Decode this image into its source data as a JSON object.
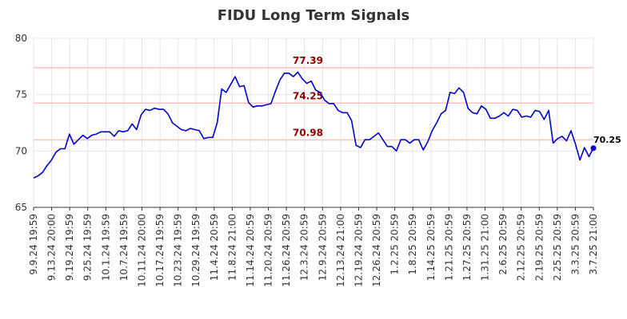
{
  "chart_data": {
    "type": "line",
    "title": "FIDU Long Term Signals",
    "xlabel": "",
    "ylabel": "",
    "ylim": [
      65,
      80
    ],
    "y_ticks": [
      65,
      70,
      75,
      80
    ],
    "grid": true,
    "x_tick_labels": [
      "9.9.24 19:59",
      "9.13.24 20:00",
      "9.19.24 19:59",
      "9.25.24 19:59",
      "10.1.24 19:59",
      "10.7.24 19:59",
      "10.11.24 20:00",
      "10.17.24 19:59",
      "10.23.24 19:59",
      "10.29.24 19:59",
      "11.4.24 20:59",
      "11.8.24 21:00",
      "11.14.24 20:59",
      "11.20.24 20:59",
      "11.26.24 20:59",
      "12.3.24 20:59",
      "12.9.24 20:59",
      "12.13.24 21:00",
      "12.19.24 20:59",
      "12.26.24 20:59",
      "1.2.25 20:59",
      "1.8.25 20:59",
      "1.14.25 20:59",
      "1.21.25 20:59",
      "1.27.25 20:59",
      "1.31.25 21:00",
      "2.6.25 20:59",
      "2.12.25 20:59",
      "2.19.25 20:59",
      "2.25.25 20:59",
      "3.3.25 20:59",
      "3.7.25 21:00"
    ],
    "series": [
      {
        "color": "#0000cc",
        "values": [
          67.6,
          67.8,
          68.1,
          68.7,
          69.2,
          69.9,
          70.2,
          70.2,
          71.5,
          70.6,
          71.0,
          71.4,
          71.1,
          71.4,
          71.5,
          71.7,
          71.7,
          71.7,
          71.3,
          71.8,
          71.7,
          71.8,
          72.4,
          71.9,
          73.2,
          73.7,
          73.6,
          73.8,
          73.7,
          73.7,
          73.3,
          72.5,
          72.2,
          71.9,
          71.8,
          72.0,
          71.9,
          71.8,
          71.1,
          71.2,
          71.2,
          72.5,
          75.5,
          75.2,
          75.9,
          76.6,
          75.7,
          75.8,
          74.3,
          73.9,
          74.0,
          74.0,
          74.1,
          74.2,
          75.3,
          76.3,
          76.9,
          76.9,
          76.6,
          77.0,
          76.4,
          76.0,
          76.2,
          75.4,
          75.2,
          74.5,
          74.2,
          74.2,
          73.6,
          73.4,
          73.4,
          72.7,
          70.5,
          70.3,
          71.0,
          71.0,
          71.3,
          71.6,
          71.0,
          70.4,
          70.4,
          70.0,
          71.0,
          71.0,
          70.7,
          71.0,
          71.0,
          70.1,
          70.8,
          71.8,
          72.5,
          73.3,
          73.6,
          75.2,
          75.1,
          75.6,
          75.2,
          73.8,
          73.4,
          73.3,
          74.0,
          73.7,
          72.9,
          72.9,
          73.1,
          73.4,
          73.1,
          73.7,
          73.6,
          73.0,
          73.1,
          73.0,
          73.6,
          73.5,
          72.8,
          73.6,
          70.7,
          71.1,
          71.3,
          70.9,
          71.8,
          70.6,
          69.2,
          70.3,
          69.5,
          70.25
        ]
      }
    ],
    "levels": [
      {
        "value": 77.39,
        "label": "77.39",
        "color": "#ffc0c0"
      },
      {
        "value": 74.25,
        "label": "74.25",
        "color": "#ffc0c0"
      },
      {
        "value": 70.98,
        "label": "70.98",
        "color": "#ffc0c0"
      }
    ],
    "last_point": {
      "value": 70.25,
      "label": "70.25"
    }
  }
}
